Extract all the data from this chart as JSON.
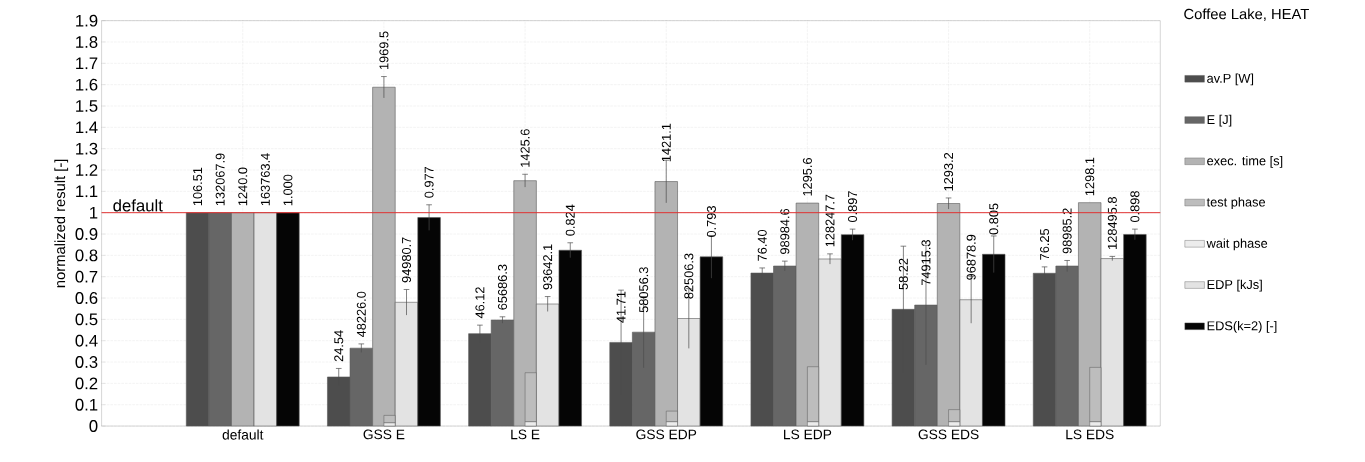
{
  "chart_data": {
    "type": "bar",
    "legend_title": "Coffee Lake, HEAT",
    "ylabel": "normalized result [-]",
    "categories": [
      "default",
      "GSS E",
      "LS E",
      "GSS EDP",
      "LS EDP",
      "GSS EDS",
      "LS EDS"
    ],
    "series": [
      {
        "name": "av.P [W]",
        "color": "#4d4d4d",
        "values": [
          1,
          0.23,
          0.433,
          0.392,
          0.717,
          0.547,
          0.716
        ],
        "errors": [
          null,
          0.04,
          0.04,
          0.245,
          0.024,
          0.296,
          0.03
        ]
      },
      {
        "name": "E [J]",
        "color": "#666666",
        "values": [
          1,
          0.365,
          0.497,
          0.44,
          0.75,
          0.567,
          0.75
        ],
        "errors": [
          null,
          0.02,
          0.015,
          0.167,
          0.023,
          0.28,
          0.026
        ]
      },
      {
        "name": "exec. time [s]",
        "color": "#b3b3b3",
        "values": [
          1,
          1.588,
          1.15,
          1.146,
          1.045,
          1.043,
          1.047
        ],
        "errors": [
          null,
          0.05,
          0.03,
          0.1,
          null,
          0.026,
          null
        ]
      },
      {
        "name": "test phase",
        "color": "#bdbdbd",
        "base": [
          null,
          0.015,
          0.02,
          0.02,
          0.02,
          0.02,
          0.02
        ],
        "values": [
          null,
          0.035,
          0.23,
          0.05,
          0.258,
          0.057,
          0.255
        ]
      },
      {
        "name": "wait phase",
        "color": "#ececec",
        "base": [
          null,
          0,
          0,
          0,
          0,
          0,
          0
        ],
        "values": [
          null,
          0.015,
          0.02,
          0.02,
          0.02,
          0.02,
          0.02
        ]
      },
      {
        "name": "EDP [kJs]",
        "color": "#e3e3e3",
        "values": [
          1,
          0.58,
          0.572,
          0.504,
          0.783,
          0.592,
          0.785
        ],
        "errors": [
          null,
          0.06,
          0.035,
          0.14,
          0.024,
          0.11,
          0.01
        ]
      },
      {
        "name": "EDS(k=2) [-]",
        "color": "#050505",
        "values": [
          1,
          0.977,
          0.824,
          0.793,
          0.897,
          0.805,
          0.898
        ],
        "errors": [
          null,
          0.06,
          0.035,
          0.1,
          0.026,
          0.086,
          0.025
        ]
      }
    ],
    "annotations": [
      "106.51",
      "132067.9",
      "1240.0",
      "163763.4",
      "1.000",
      "24.54",
      "48226.0",
      "1969.5",
      "94980.7",
      "0.977",
      "46.12",
      "65686.3",
      "1425.6",
      "93642.1",
      "0.824",
      "41.71",
      "58056.3",
      "1421.1",
      "82506.3",
      "0.793",
      "76.40",
      "98984.6",
      "1295.6",
      "128247.7",
      "0.897",
      "58.22",
      "74915.3",
      "1293.2",
      "96878.9",
      "0.805",
      "76.25",
      "98985.2",
      "1298.1",
      "128495.8",
      "0.898"
    ],
    "ylim": [
      0,
      1.9
    ],
    "yticks": [
      0,
      0.1,
      0.2,
      0.3,
      0.4,
      0.5,
      0.6,
      0.7,
      0.8,
      0.9,
      1,
      1.1,
      1.2,
      1.3,
      1.4,
      1.5,
      1.6,
      1.7,
      1.8,
      1.9
    ],
    "ref_lines": [
      {
        "axis": "y",
        "value": 1,
        "label": "default",
        "color": "#e03030"
      }
    ],
    "grid": true,
    "legend": "right"
  }
}
